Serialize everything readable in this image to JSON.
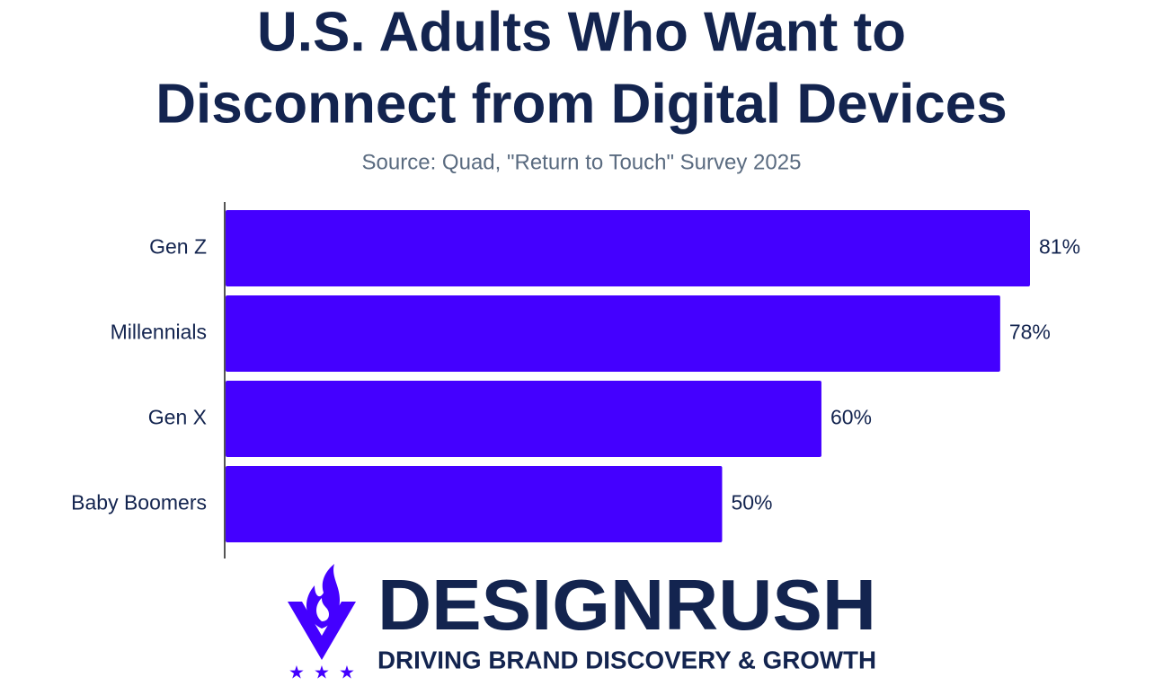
{
  "chart_data": {
    "type": "hbar",
    "title": [
      "U.S. Adults Who Want to",
      "Disconnect from Digital Devices"
    ],
    "subtitle": "Source: Quad, \"Return to Touch\" Survey 2025",
    "categories": [
      "Gen Z",
      "Millennials",
      "Gen X",
      "Baby Boomers"
    ],
    "values": [
      81,
      78,
      60,
      50
    ],
    "value_labels": [
      "81%",
      "78%",
      "60%",
      "50%"
    ],
    "color": "#4400ff"
  },
  "logo": {
    "name": "DESIGNRUSH",
    "tagline": "DRIVING BRAND DISCOVERY & GROWTH"
  }
}
